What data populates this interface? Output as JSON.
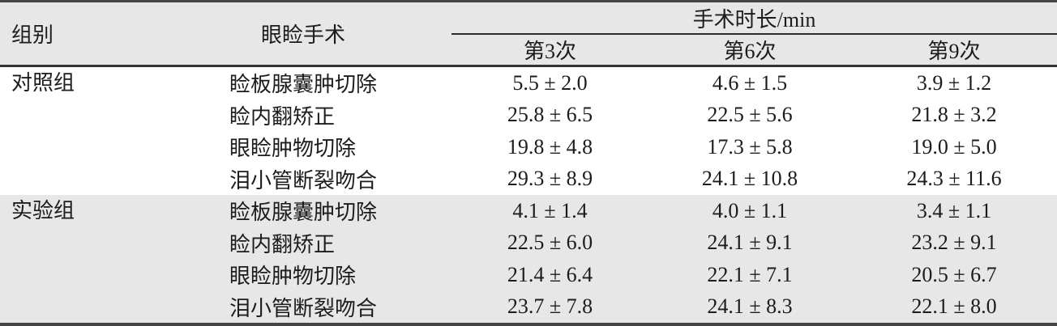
{
  "table": {
    "headers": {
      "col_group": "组别",
      "col_surgery": "眼睑手术",
      "spanner": "手术时长/min",
      "sub_cols": [
        "第3次",
        "第6次",
        "第9次"
      ]
    },
    "groups": [
      {
        "name": "对照组",
        "rows": [
          {
            "surgery": "睑板腺囊肿切除",
            "values": [
              "5.5 ± 2.0",
              "4.6 ± 1.5",
              "3.9 ± 1.2"
            ]
          },
          {
            "surgery": "睑内翻矫正",
            "values": [
              "25.8 ± 6.5",
              "22.5 ± 5.6",
              "21.8 ± 3.2"
            ]
          },
          {
            "surgery": "眼睑肿物切除",
            "values": [
              "19.8 ± 4.8",
              "17.3 ± 5.8",
              "19.0 ± 5.0"
            ]
          },
          {
            "surgery": "泪小管断裂吻合",
            "values": [
              "29.3 ± 8.9",
              "24.1 ± 10.8",
              "24.3 ± 11.6"
            ]
          }
        ]
      },
      {
        "name": "实验组",
        "rows": [
          {
            "surgery": "睑板腺囊肿切除",
            "values": [
              "4.1 ± 1.4",
              "4.0 ± 1.1",
              "3.4 ± 1.1"
            ]
          },
          {
            "surgery": "睑内翻矫正",
            "values": [
              "22.5 ± 6.0",
              "24.1 ± 9.1",
              "23.2 ± 9.1"
            ]
          },
          {
            "surgery": "眼睑肿物切除",
            "values": [
              "21.4 ± 6.4",
              "22.1 ± 7.1",
              "20.5 ± 6.7"
            ]
          },
          {
            "surgery": "泪小管断裂吻合",
            "values": [
              "23.7 ± 7.8",
              "24.1 ± 8.3",
              "22.1 ± 8.0"
            ]
          }
        ]
      }
    ],
    "colors": {
      "band_gray": "#e7e7e7",
      "rule_dark": "#454545",
      "text": "#1c1c1c"
    }
  },
  "chart_data": {
    "type": "table",
    "title": "手术时长/min",
    "columns": [
      "组别",
      "眼睑手术",
      "第3次",
      "第6次",
      "第9次"
    ],
    "rows": [
      [
        "对照组",
        "睑板腺囊肿切除",
        "5.5 ± 2.0",
        "4.6 ± 1.5",
        "3.9 ± 1.2"
      ],
      [
        "对照组",
        "睑内翻矫正",
        "25.8 ± 6.5",
        "22.5 ± 5.6",
        "21.8 ± 3.2"
      ],
      [
        "对照组",
        "眼睑肿物切除",
        "19.8 ± 4.8",
        "17.3 ± 5.8",
        "19.0 ± 5.0"
      ],
      [
        "对照组",
        "泪小管断裂吻合",
        "29.3 ± 8.9",
        "24.1 ± 10.8",
        "24.3 ± 11.6"
      ],
      [
        "实验组",
        "睑板腺囊肿切除",
        "4.1 ± 1.4",
        "4.0 ± 1.1",
        "3.4 ± 1.1"
      ],
      [
        "实验组",
        "睑内翻矫正",
        "22.5 ± 6.0",
        "24.1 ± 9.1",
        "23.2 ± 9.1"
      ],
      [
        "实验组",
        "眼睑肿物切除",
        "21.4 ± 6.4",
        "22.1 ± 7.1",
        "20.5 ± 6.7"
      ],
      [
        "实验组",
        "泪小管断裂吻合",
        "23.7 ± 7.8",
        "24.1 ± 8.3",
        "22.1 ± 8.0"
      ]
    ]
  }
}
